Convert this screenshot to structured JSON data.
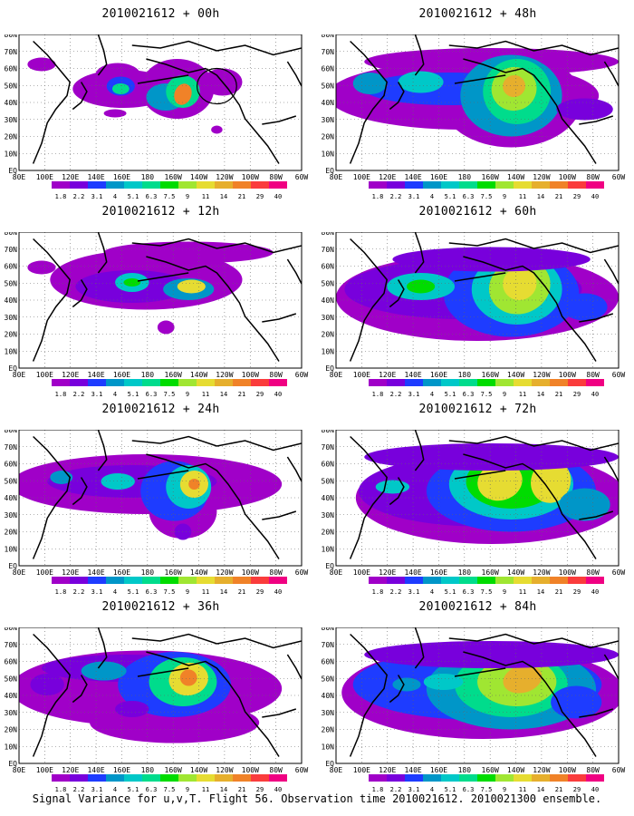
{
  "lat_labels": [
    "80N",
    "70N",
    "60N",
    "50N",
    "40N",
    "30N",
    "20N",
    "10N",
    "EQ"
  ],
  "lon_labels": [
    "80E",
    "100E",
    "120E",
    "140E",
    "160E",
    "180",
    "160W",
    "140W",
    "120W",
    "100W",
    "80W",
    "60W"
  ],
  "colorbar": {
    "labels": [
      "1.8",
      "2.2",
      "3.1",
      "4",
      "5.1",
      "6.3",
      "7.5",
      "9",
      "11",
      "14",
      "21",
      "29",
      "40"
    ],
    "colors": [
      "#a000c8",
      "#7800dc",
      "#1e3cff",
      "#0096c8",
      "#00c8c8",
      "#00dc8c",
      "#00dc00",
      "#a0e632",
      "#e6dc32",
      "#e6af2d",
      "#f08228",
      "#fa3c3c",
      "#f00082"
    ]
  },
  "panels": [
    {
      "title": "2010021612 + 00h"
    },
    {
      "title": "2010021612 + 48h"
    },
    {
      "title": "2010021612 + 12h"
    },
    {
      "title": "2010021612 + 60h"
    },
    {
      "title": "2010021612 + 24h"
    },
    {
      "title": "2010021612 + 72h"
    },
    {
      "title": "2010021612 + 36h"
    },
    {
      "title": "2010021612 + 84h"
    }
  ],
  "footer": "Signal Variance for u,v,T. Flight 56. Observation time 2010021612. 2010021300 ensemble."
}
